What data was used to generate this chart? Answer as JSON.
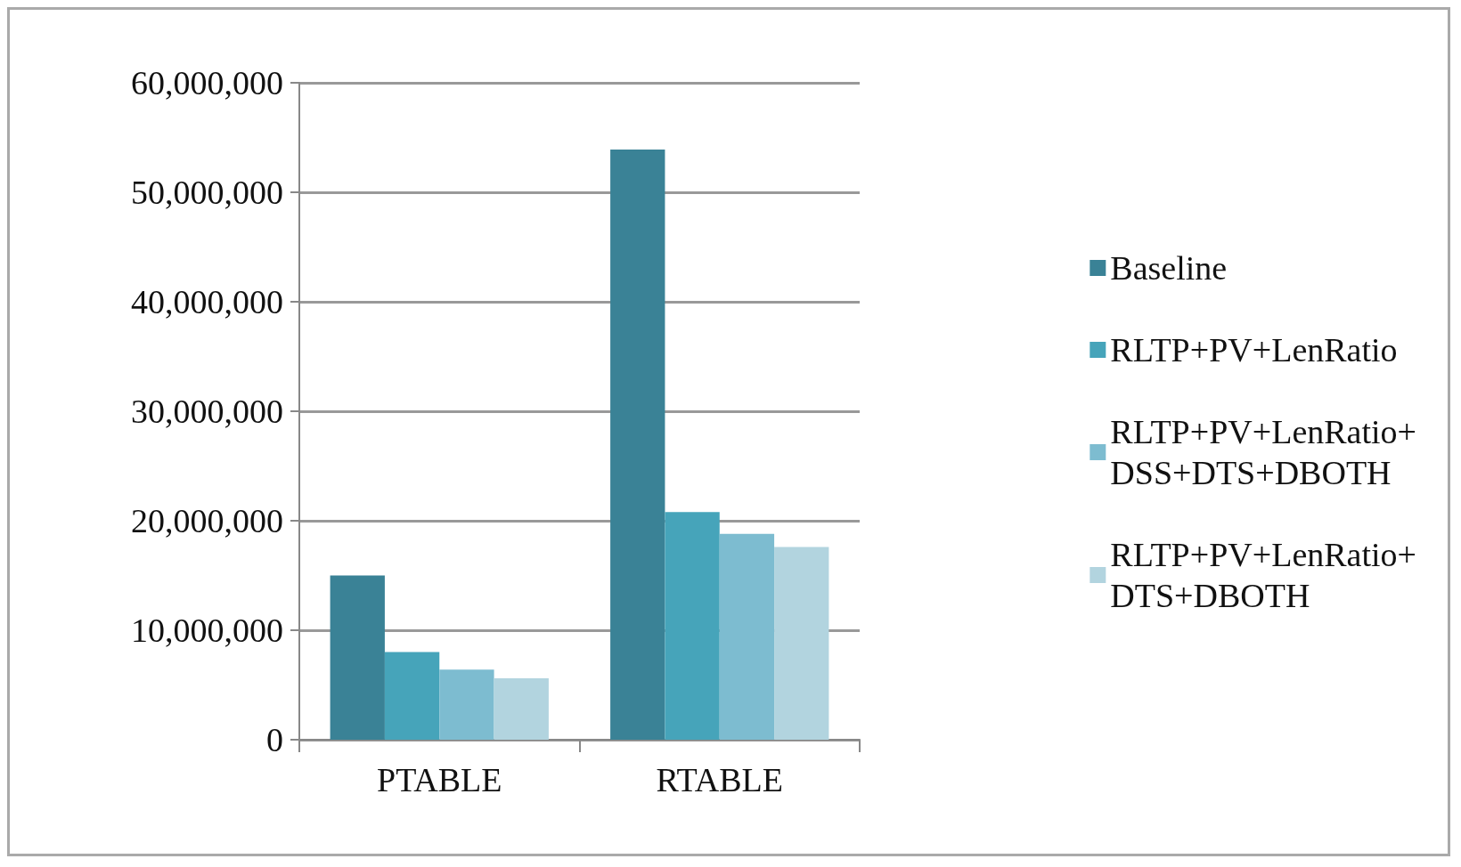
{
  "chart_data": {
    "type": "bar",
    "categories": [
      "PTABLE",
      "RTABLE"
    ],
    "series": [
      {
        "name": "Baseline",
        "color": "#3a8296",
        "values": [
          15000000,
          53900000
        ]
      },
      {
        "name": "RLTP+PV+LenRatio",
        "color": "#46a4ba",
        "values": [
          8000000,
          20800000
        ]
      },
      {
        "name": "RLTP+PV+LenRatio+DSS+DTS+DBOTH",
        "color": "#7dbcd0",
        "values": [
          6400000,
          18800000
        ]
      },
      {
        "name": "RLTP+PV+LenRatio+DTS+DBOTH",
        "color": "#b2d4df",
        "values": [
          5600000,
          17600000
        ]
      }
    ],
    "ylim": [
      0,
      60000000
    ],
    "yticks": [
      0,
      {
        "value": 10000000,
        "label": "10,000,000"
      },
      {
        "value": 20000000,
        "label": "20,000,000"
      },
      {
        "value": 30000000,
        "label": "30,000,000"
      },
      {
        "value": 40000000,
        "label": "40,000,000"
      },
      {
        "value": 50000000,
        "label": "50,000,000"
      },
      {
        "value": 60000000,
        "label": "60,000,000"
      }
    ],
    "grid": "y",
    "legend": "right"
  }
}
